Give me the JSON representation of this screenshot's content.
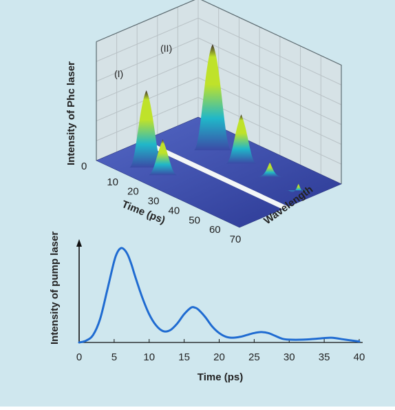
{
  "colors": {
    "background": "#cfe7ee",
    "pump_line": "#1f6bd1",
    "surface_base": "#3b4aa6",
    "peak_mid": "#20b7c9",
    "peak_high": "#bfe22a",
    "peak_top": "#3a2a2a"
  },
  "chart_data": [
    {
      "type": "surface",
      "z_label": "Intensity of Phc laser",
      "x_label": "Time (ps)",
      "y_label": "Wavelength",
      "x_ticks": [
        "10",
        "20",
        "30",
        "40",
        "50",
        "60",
        "70"
      ],
      "z_ticks": [
        "0"
      ],
      "peak_labels": [
        "(I)",
        "(II)"
      ],
      "grid": true,
      "peaks": [
        {
          "label": "(I)",
          "time_ps": 14,
          "row": "front",
          "relative_intensity": 0.72
        },
        {
          "label": "",
          "time_ps": 22,
          "row": "front",
          "relative_intensity": 0.32
        },
        {
          "label": "(II)",
          "time_ps": 20,
          "row": "back",
          "relative_intensity": 1.0
        },
        {
          "label": "",
          "time_ps": 34,
          "row": "back",
          "relative_intensity": 0.45
        },
        {
          "label": "",
          "time_ps": 48,
          "row": "back",
          "relative_intensity": 0.12
        },
        {
          "label": "",
          "time_ps": 62,
          "row": "back",
          "relative_intensity": 0.04
        }
      ]
    },
    {
      "type": "line",
      "xlabel": "Time (ps)",
      "ylabel": "Intensity of pump laser",
      "x_ticks": [
        "0",
        "5",
        "10",
        "15",
        "20",
        "25",
        "30",
        "35",
        "40"
      ],
      "xlim": [
        0,
        40
      ],
      "ylim": [
        0,
        1
      ],
      "series": [
        {
          "x": [
            0,
            1,
            2,
            3,
            4,
            5,
            5.5,
            6,
            6.5,
            7,
            7.5,
            8,
            9,
            10,
            11,
            12,
            13,
            14,
            15,
            16,
            16.5,
            17,
            18,
            19,
            20,
            21,
            22,
            23,
            24,
            25,
            26,
            27,
            28,
            29,
            30,
            32,
            34,
            36,
            38,
            40
          ],
          "y": [
            0,
            0.02,
            0.08,
            0.25,
            0.55,
            0.86,
            0.96,
            1.0,
            0.98,
            0.92,
            0.82,
            0.7,
            0.48,
            0.3,
            0.18,
            0.12,
            0.13,
            0.2,
            0.3,
            0.37,
            0.37,
            0.35,
            0.27,
            0.17,
            0.1,
            0.06,
            0.05,
            0.06,
            0.08,
            0.1,
            0.11,
            0.1,
            0.07,
            0.04,
            0.03,
            0.03,
            0.04,
            0.05,
            0.03,
            0.01
          ]
        }
      ]
    }
  ]
}
